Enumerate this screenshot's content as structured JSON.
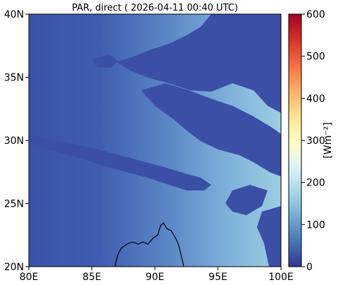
{
  "title": "PAR, direct ( 2026-04-11 00:40 UTC)",
  "map": {
    "lon_range": [
      80,
      100
    ],
    "lat_range": [
      20,
      40
    ],
    "x_ticks": [
      {
        "value": 80,
        "label": "80E"
      },
      {
        "value": 85,
        "label": "85E"
      },
      {
        "value": 90,
        "label": "90E"
      },
      {
        "value": 95,
        "label": "95E"
      },
      {
        "value": 100,
        "label": "100E"
      }
    ],
    "y_ticks": [
      {
        "value": 20,
        "label": "20N"
      },
      {
        "value": 25,
        "label": "25N"
      },
      {
        "value": 30,
        "label": "30N"
      },
      {
        "value": 35,
        "label": "35N"
      },
      {
        "value": 40,
        "label": "40N"
      }
    ],
    "field_colors": {
      "low": "#3a52a8",
      "mid": "#5b86c6",
      "high": "#9ccde2"
    }
  },
  "colorbar": {
    "label": "[Wm⁻²]",
    "range": [
      0,
      600
    ],
    "ticks": [
      {
        "value": 0,
        "label": "0"
      },
      {
        "value": 100,
        "label": "100"
      },
      {
        "value": 200,
        "label": "200"
      },
      {
        "value": 300,
        "label": "300"
      },
      {
        "value": 400,
        "label": "400"
      },
      {
        "value": 500,
        "label": "500"
      },
      {
        "value": 600,
        "label": "600"
      }
    ],
    "colors": [
      "#313695",
      "#4575b4",
      "#74add1",
      "#abd9e9",
      "#e0f3f8",
      "#ffffbf",
      "#fee090",
      "#fdae61",
      "#f46d43",
      "#d73027",
      "#a50026"
    ]
  }
}
